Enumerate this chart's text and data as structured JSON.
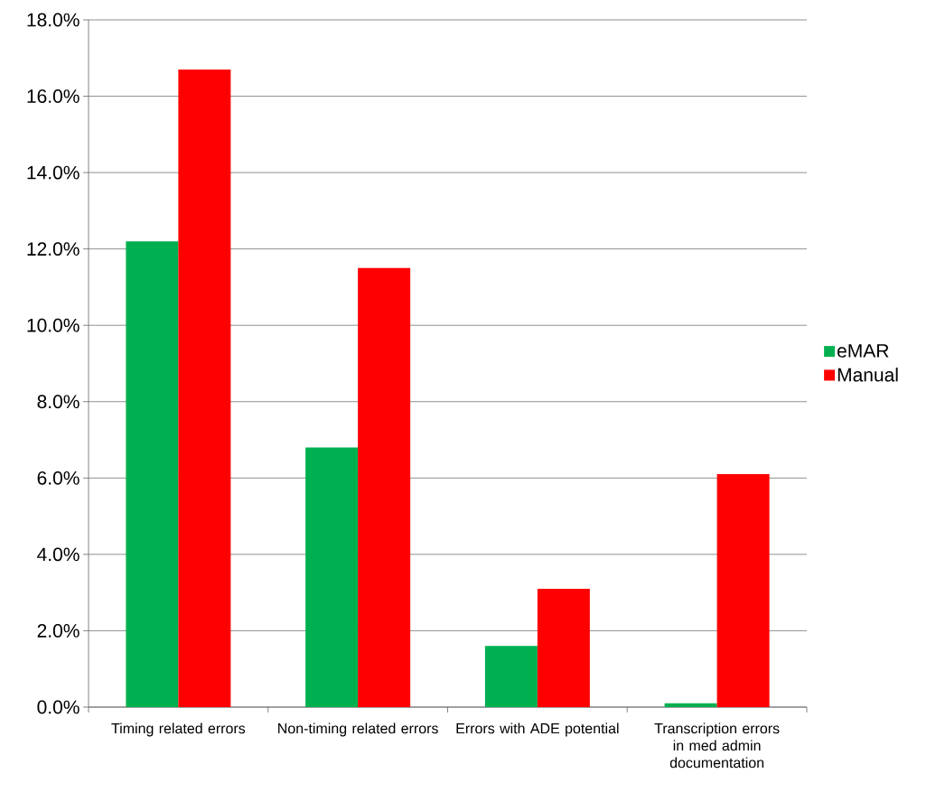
{
  "chart_data": {
    "type": "bar",
    "categories": [
      "Timing related errors",
      "Non-timing related errors",
      "Errors with ADE potential",
      "Transcription errors in med admin documentation"
    ],
    "series": [
      {
        "name": "eMAR",
        "color": "#00b050",
        "values": [
          12.2,
          6.8,
          1.6,
          0.1
        ]
      },
      {
        "name": "Manual",
        "color": "#ff0000",
        "values": [
          16.7,
          11.5,
          3.1,
          6.1
        ]
      }
    ],
    "ylim": [
      0,
      18
    ],
    "yticks": [
      {
        "value": 0,
        "label": "0.0%"
      },
      {
        "value": 2,
        "label": "2.0%"
      },
      {
        "value": 4,
        "label": "4.0%"
      },
      {
        "value": 6,
        "label": "6.0%"
      },
      {
        "value": 8,
        "label": "8.0%"
      },
      {
        "value": 10,
        "label": "10.0%"
      },
      {
        "value": 12,
        "label": "12.0%"
      },
      {
        "value": 14,
        "label": "14.0%"
      },
      {
        "value": 16,
        "label": "16.0%"
      },
      {
        "value": 18,
        "label": "18.0%"
      }
    ],
    "grid": "y",
    "legend": "right"
  }
}
